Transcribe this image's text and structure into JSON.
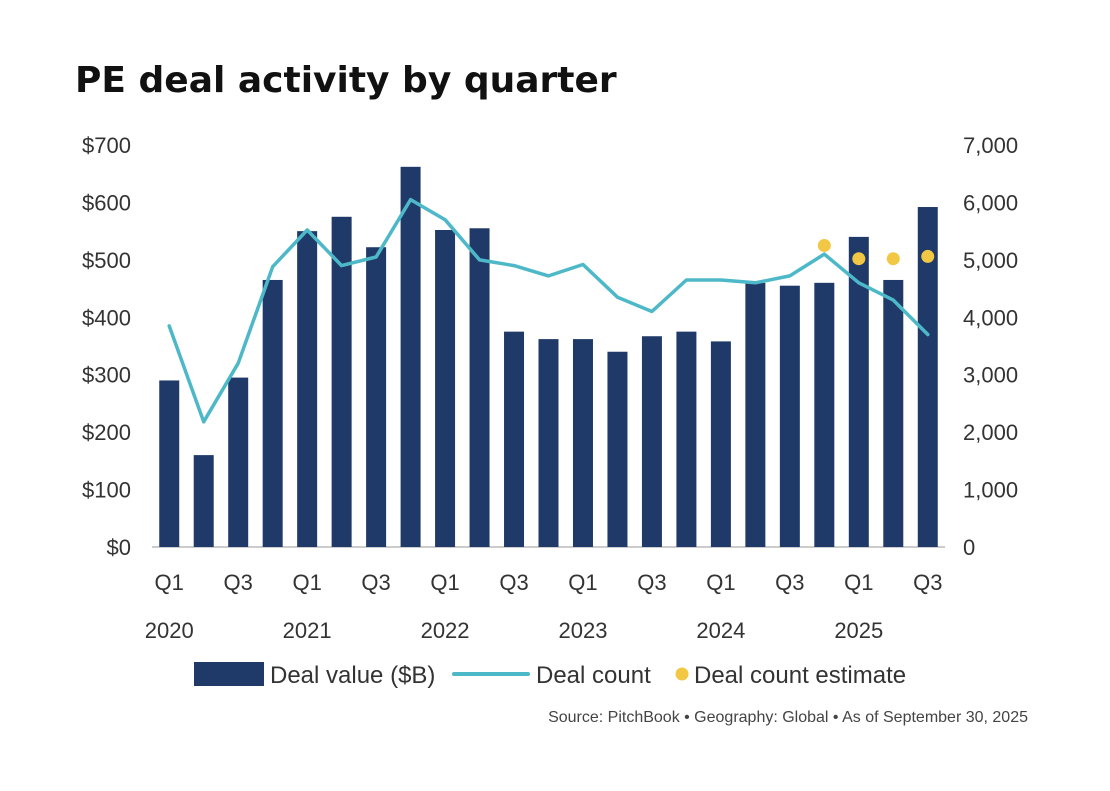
{
  "chart_data": {
    "type": "bar",
    "title": "PE deal activity by quarter",
    "categories": [
      "Q1 2020",
      "Q2 2020",
      "Q3 2020",
      "Q4 2020",
      "Q1 2021",
      "Q2 2021",
      "Q3 2021",
      "Q4 2021",
      "Q1 2022",
      "Q2 2022",
      "Q3 2022",
      "Q4 2022",
      "Q1 2023",
      "Q2 2023",
      "Q3 2023",
      "Q4 2023",
      "Q1 2024",
      "Q2 2024",
      "Q3 2024",
      "Q4 2024",
      "Q1 2025",
      "Q2 2025",
      "Q3 2025"
    ],
    "x_tick_labels": [
      "Q1",
      "",
      "Q3",
      "",
      "Q1",
      "",
      "Q3",
      "",
      "Q1",
      "",
      "Q3",
      "",
      "Q1",
      "",
      "Q3",
      "",
      "Q1",
      "",
      "Q3",
      "",
      "Q1",
      "",
      "Q3"
    ],
    "year_labels": [
      {
        "label": "2020",
        "index": 0
      },
      {
        "label": "2021",
        "index": 4
      },
      {
        "label": "2022",
        "index": 8
      },
      {
        "label": "2023",
        "index": 12
      },
      {
        "label": "2024",
        "index": 16
      },
      {
        "label": "2025",
        "index": 20
      }
    ],
    "y_left_ticks": [
      "$0",
      "$100",
      "$200",
      "$300",
      "$400",
      "$500",
      "$600",
      "$700"
    ],
    "y_right_ticks": [
      "0",
      "1,000",
      "2,000",
      "3,000",
      "4,000",
      "5,000",
      "6,000",
      "7,000"
    ],
    "ylim_left": [
      0,
      700
    ],
    "ylim_right": [
      0,
      7000
    ],
    "series": [
      {
        "name": "Deal value ($B)",
        "kind": "bar",
        "axis": "left",
        "color": "#1f3a68",
        "values": [
          290,
          160,
          295,
          465,
          550,
          575,
          522,
          662,
          552,
          555,
          375,
          362,
          362,
          340,
          367,
          375,
          358,
          460,
          455,
          460,
          540,
          465,
          592
        ]
      },
      {
        "name": "Deal count",
        "kind": "line",
        "axis": "right",
        "color": "#4db8c7",
        "values": [
          3850,
          2180,
          3200,
          4880,
          5520,
          4900,
          5050,
          6050,
          5700,
          5000,
          4900,
          4720,
          4920,
          4350,
          4100,
          4650,
          4650,
          4600,
          4720,
          5100,
          4600,
          4300,
          3700
        ]
      },
      {
        "name": "Deal count estimate",
        "kind": "scatter",
        "axis": "right",
        "color": "#f2c744",
        "points": [
          {
            "index": 19,
            "value": 5250
          },
          {
            "index": 20,
            "value": 5020
          },
          {
            "index": 21,
            "value": 5020
          },
          {
            "index": 22,
            "value": 5060
          }
        ]
      }
    ],
    "legend_position": "bottom",
    "grid": false,
    "source": "Source: PitchBook  •  Geography: Global  •  As of September 30, 2025"
  }
}
